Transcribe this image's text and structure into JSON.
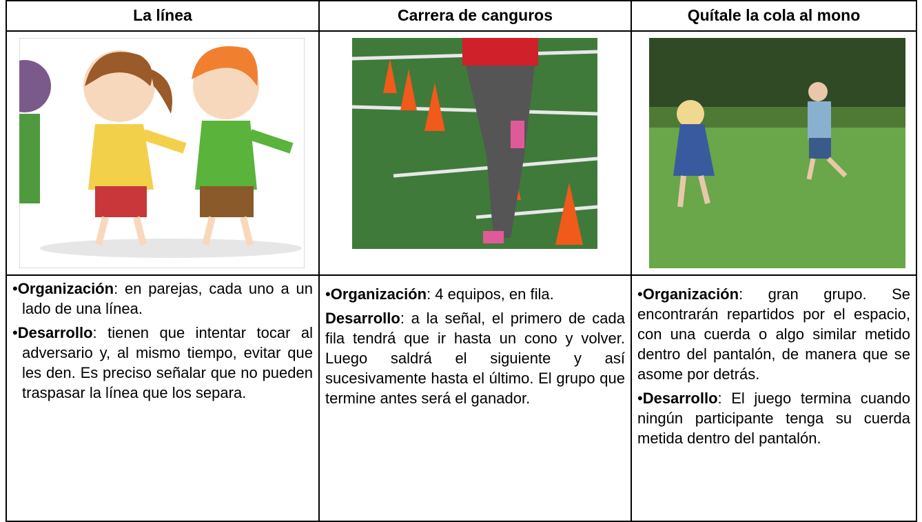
{
  "table": {
    "columns": [
      {
        "title": "La línea",
        "paragraphs": [
          {
            "bullet": "•",
            "label": "Organización",
            "text": ": en parejas, cada uno a un lado de una línea."
          },
          {
            "bullet": "•",
            "label": "Desarrollo",
            "text": ": tienen que intentar tocar al adversario y, al mismo tiempo, evitar que les den. Es preciso señalar que no pueden traspasar la línea que los separa."
          }
        ]
      },
      {
        "title": "Carrera de canguros",
        "paragraphs": [
          {
            "bullet": "•",
            "label": "Organización",
            "text": ": 4 equipos, en fila."
          },
          {
            "label": "Desarrollo",
            "text": ": a la señal, el primero de cada fila tendrá que ir hasta un cono y volver. Luego saldrá el siguiente y así sucesivamente hasta el último. El grupo que termine antes será el ganador."
          }
        ]
      },
      {
        "title": "Quítale la cola al mono",
        "paragraphs": [
          {
            "bullet": "•",
            "label": "Organización",
            "text": ": gran grupo. Se encontrarán repartidos por el espacio, con una cuerda o algo similar metido dentro del pantalón, de manera que se asome por detrás."
          },
          {
            "bullet": "•",
            "label": "Desarrollo",
            "text": ": El juego termina cuando ningún participante tenga su cuerda metida dentro del pantalón."
          }
        ]
      }
    ]
  }
}
